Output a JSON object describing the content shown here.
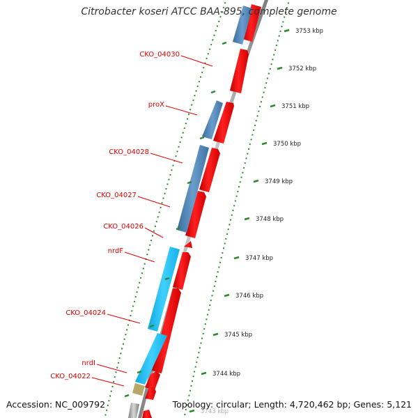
{
  "title": "Citrobacter koseri ATCC BAA-895, complete genome",
  "accession": "Accession: NC_009792",
  "summary": "Topology: circular; Length: 4,720,462 bp; Genes: 5,121",
  "colors": {
    "forward_cds": "#ff0000",
    "reverse_cds": "#4a82b4",
    "reverse_cds_light": "#1cc0f0",
    "rna": "#b8a86a",
    "backbone": "#9a9a9a",
    "ticks": "#2a8a2a",
    "label": "#e00000"
  },
  "ticks": [
    "3753 kbp",
    "3752 kbp",
    "3751 kbp",
    "3750 kbp",
    "3749 kbp",
    "3748 kbp",
    "3747 kbp",
    "3746 kbp",
    "3745 kbp",
    "3744 kbp",
    "3743 kbp"
  ],
  "gene_labels": [
    "CKO_04030",
    "proX",
    "CKO_04028",
    "CKO_04027",
    "CKO_04026",
    "nrdF",
    "CKO_04024",
    "nrdI",
    "CKO_04022"
  ]
}
